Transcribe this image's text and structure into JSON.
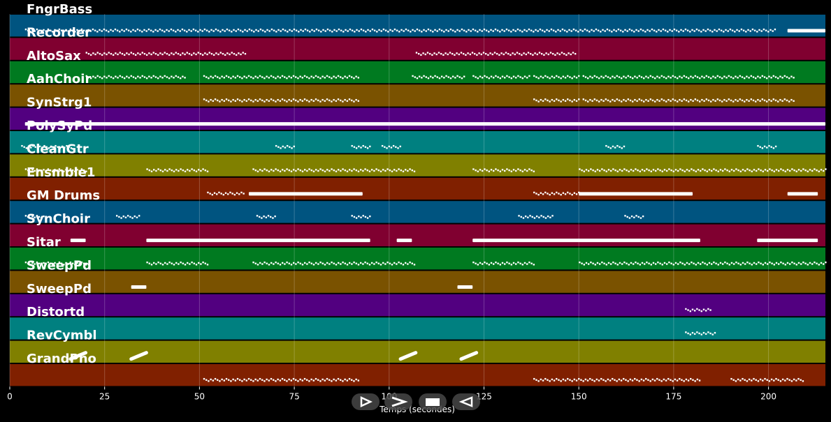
{
  "chart_data": {
    "type": "piano-roll",
    "xlabel": "Temps (secondes)",
    "xlim": [
      0,
      215
    ],
    "xticks": [
      0,
      25,
      50,
      75,
      100,
      125,
      150,
      175,
      200
    ],
    "grid": true,
    "tracks": [
      {
        "name": "FngrBass",
        "color": "#005480",
        "notes": [
          [
            4,
            202,
            "dot"
          ],
          [
            205,
            215,
            "bar"
          ]
        ]
      },
      {
        "name": "Recorder",
        "color": "#800030",
        "notes": [
          [
            20,
            62,
            "dot"
          ],
          [
            107,
            149,
            "dot"
          ]
        ]
      },
      {
        "name": "AltoSax",
        "color": "#007a20",
        "notes": [
          [
            20,
            46,
            "dot"
          ],
          [
            51,
            92,
            "dot"
          ],
          [
            106,
            120,
            "dot"
          ],
          [
            122,
            137,
            "dot"
          ],
          [
            138,
            150,
            "dot"
          ],
          [
            151,
            207,
            "dot"
          ]
        ]
      },
      {
        "name": "AahChoir",
        "color": "#7a5200",
        "notes": [
          [
            51,
            92,
            "dot"
          ],
          [
            138,
            150,
            "dot"
          ],
          [
            151,
            207,
            "dot"
          ]
        ]
      },
      {
        "name": "SynStrg1",
        "color": "#520080",
        "notes": [
          [
            4,
            215,
            "bar"
          ]
        ]
      },
      {
        "name": "PolySyPd",
        "color": "#008080",
        "notes": [
          [
            3,
            16,
            "dot"
          ],
          [
            70,
            75,
            "dot"
          ],
          [
            90,
            95,
            "dot"
          ],
          [
            98,
            103,
            "dot"
          ],
          [
            157,
            162,
            "dot"
          ],
          [
            197,
            202,
            "dot"
          ]
        ]
      },
      {
        "name": "CleanGtr",
        "color": "#808000",
        "notes": [
          [
            4,
            20,
            "dot"
          ],
          [
            36,
            52,
            "dot"
          ],
          [
            64,
            107,
            "dot"
          ],
          [
            122,
            138,
            "dot"
          ],
          [
            150,
            215,
            "dot"
          ]
        ]
      },
      {
        "name": "Ensmble1",
        "color": "#802000",
        "notes": [
          [
            52,
            62,
            "dot"
          ],
          [
            63,
            93,
            "bar"
          ],
          [
            138,
            150,
            "dot"
          ],
          [
            150,
            180,
            "bar"
          ],
          [
            205,
            213,
            "bar"
          ]
        ]
      },
      {
        "name": "GM Drums",
        "color": "#005480",
        "notes": [
          [
            4,
            9,
            "dot"
          ],
          [
            28,
            34,
            "dot"
          ],
          [
            65,
            70,
            "dot"
          ],
          [
            90,
            95,
            "dot"
          ],
          [
            134,
            143,
            "dot"
          ],
          [
            162,
            167,
            "dot"
          ]
        ]
      },
      {
        "name": "SynChoir",
        "color": "#800030",
        "notes": [
          [
            16,
            20,
            "bar"
          ],
          [
            36,
            95,
            "bar"
          ],
          [
            102,
            106,
            "bar"
          ],
          [
            122,
            182,
            "bar"
          ],
          [
            197,
            213,
            "bar"
          ]
        ]
      },
      {
        "name": "Sitar",
        "color": "#007a20",
        "notes": [
          [
            4,
            20,
            "dot"
          ],
          [
            36,
            52,
            "dot"
          ],
          [
            64,
            107,
            "dot"
          ],
          [
            122,
            138,
            "dot"
          ],
          [
            150,
            215,
            "dot"
          ]
        ]
      },
      {
        "name": "SweepPd",
        "color": "#7a5200",
        "notes": [
          [
            32,
            36,
            "bar"
          ],
          [
            118,
            122,
            "bar"
          ]
        ]
      },
      {
        "name": "SweepPd",
        "color": "#520080",
        "notes": [
          [
            178,
            185,
            "dot"
          ]
        ]
      },
      {
        "name": "Distortd",
        "color": "#008080",
        "notes": [
          [
            178,
            186,
            "dot"
          ]
        ]
      },
      {
        "name": "RevCymbl",
        "color": "#808000",
        "notes": [
          [
            16,
            20,
            "slant"
          ],
          [
            32,
            36,
            "slant"
          ],
          [
            103,
            107,
            "slant"
          ],
          [
            119,
            123,
            "slant"
          ]
        ]
      },
      {
        "name": "GrandPno",
        "color": "#802000",
        "notes": [
          [
            51,
            92,
            "dot"
          ],
          [
            138,
            182,
            "dot"
          ],
          [
            190,
            209,
            "dot"
          ]
        ]
      }
    ]
  },
  "controls": {
    "play_icon": "play-icon",
    "forward_icon": "forward-icon",
    "stop_icon": "stop-icon",
    "rewind_icon": "rewind-icon"
  }
}
